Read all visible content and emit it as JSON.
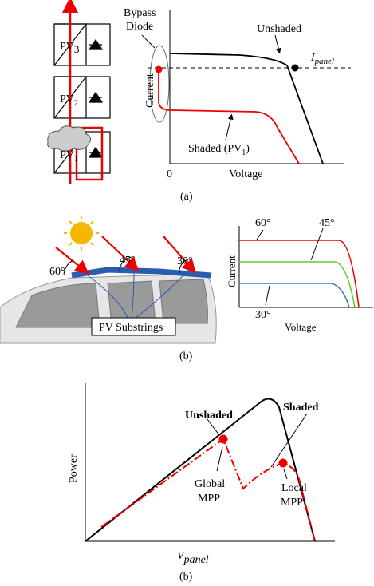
{
  "panel_a": {
    "modules": [
      {
        "text": "PV",
        "sub": "3"
      },
      {
        "text": "PV",
        "sub": "2"
      },
      {
        "text": "PV",
        "sub": "1"
      }
    ],
    "bypass_label": [
      "Bypass",
      "Diode"
    ],
    "unshaded": "Unshaded",
    "i_panel": {
      "text": "I",
      "sub": "panel"
    },
    "y_label": "Current",
    "x_zero": "0",
    "x_label": "Voltage",
    "shaded": {
      "text": "Shaded (PV",
      "sub": "1",
      "tail": ")"
    },
    "caption": "(a)"
  },
  "panel_b": {
    "angles": [
      "60°",
      "45°",
      "30°"
    ],
    "substrings": "PV Substrings",
    "curve_labels": [
      "60°",
      "45°",
      "30°"
    ],
    "y_label": "Current",
    "x_label": "Voltage",
    "caption": "(b)"
  },
  "panel_c": {
    "unshaded": "Unshaded",
    "shaded": "Shaded",
    "y_label": "Power",
    "global_mpp": [
      "Global",
      "MPP"
    ],
    "local_mpp": [
      "Local",
      "MPP"
    ],
    "x_label": {
      "text": "V",
      "sub": "panel"
    },
    "caption": "(b)"
  }
}
